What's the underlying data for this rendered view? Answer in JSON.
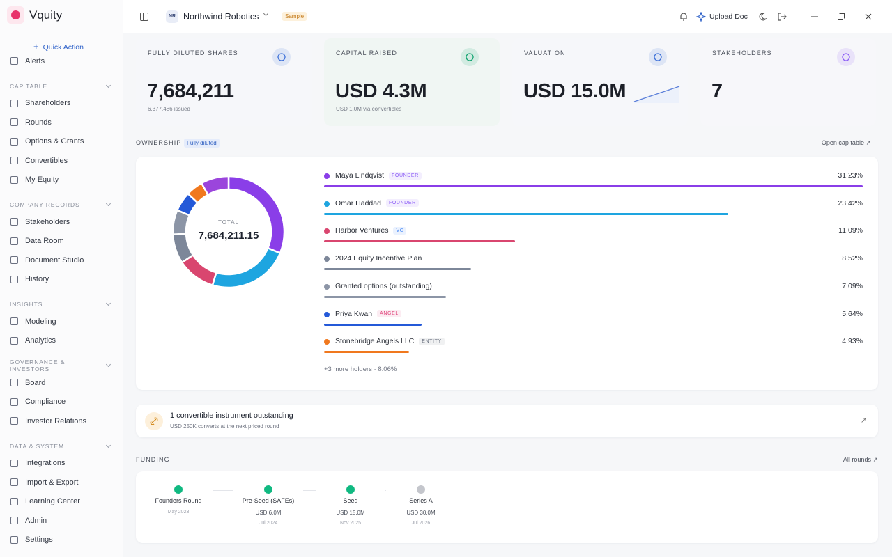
{
  "app": {
    "name": "Vquity",
    "quick_action": "Quick Action"
  },
  "sidebar": {
    "partial_item": "Alerts",
    "sections": [
      {
        "title": "CAP TABLE",
        "items": [
          "Shareholders",
          "Rounds",
          "Options & Grants",
          "Convertibles",
          "My Equity"
        ]
      },
      {
        "title": "COMPANY RECORDS",
        "items": [
          "Stakeholders",
          "Data Room",
          "Document Studio",
          "History"
        ]
      },
      {
        "title": "INSIGHTS",
        "items": [
          "Modeling",
          "Analytics"
        ]
      },
      {
        "title": "GOVERNANCE & INVESTORS",
        "items": [
          "Board",
          "Compliance",
          "Investor Relations"
        ]
      },
      {
        "title": "DATA & SYSTEM",
        "items": [
          "Integrations",
          "Import & Export",
          "Learning Center",
          "Admin",
          "Settings"
        ]
      }
    ]
  },
  "topbar": {
    "initials": "NR",
    "company": "Northwind Robotics",
    "badge": "Sample",
    "upload": "Upload Doc"
  },
  "kpis": [
    {
      "label": "FULLY DILUTED SHARES",
      "value": "7,684,211",
      "sub": "6,377,486 issued",
      "tint": "#f6f7fa",
      "icon_color": "#3b6fd8"
    },
    {
      "label": "CAPITAL RAISED",
      "value": "USD 4.3M",
      "sub": "USD 1.0M via convertibles",
      "tint": "#f0f6f3",
      "icon_color": "#10a36f"
    },
    {
      "label": "VALUATION",
      "value": "USD 15.0M",
      "tint": "#f6f7fa",
      "icon_color": "#3b6fd8"
    },
    {
      "label": "STAKEHOLDERS",
      "value": "7",
      "tint": "#f7f7fa",
      "icon_color": "#8b5cf6"
    }
  ],
  "ownership": {
    "title": "OWNERSHIP",
    "badge": "Fully diluted",
    "link": "Open cap table",
    "total_label": "TOTAL",
    "total": "7,684,211.15",
    "holders": [
      {
        "name": "Maya Lindqvist",
        "tag": "FOUNDER",
        "tag_color": "#8b5cf6",
        "value": 31.23,
        "value_label": "31.23%",
        "color": "#8a3ee8"
      },
      {
        "name": "Omar Haddad",
        "tag": "FOUNDER",
        "tag_color": "#8b5cf6",
        "value": 23.42,
        "value_label": "23.42%",
        "color": "#1ea5e0"
      },
      {
        "name": "Harbor Ventures",
        "tag": "VC",
        "tag_color": "#3b82f6",
        "value": 11.09,
        "value_label": "11.09%",
        "color": "#d9466f"
      },
      {
        "name": "2024 Equity Incentive Plan",
        "value": 8.52,
        "value_label": "8.52%",
        "color": "#7d8799"
      },
      {
        "name": "Granted options (outstanding)",
        "value": 7.09,
        "value_label": "7.09%",
        "color": "#8c95a6"
      },
      {
        "name": "Priya Kwan",
        "tag": "ANGEL",
        "tag_color": "#e0457b",
        "value": 5.64,
        "value_label": "5.64%",
        "color": "#2459d8"
      },
      {
        "name": "Stonebridge Angels LLC",
        "tag": "ENTITY",
        "tag_color": "#6b7280",
        "value": 4.93,
        "value_label": "4.93%",
        "color": "#f0781e"
      }
    ],
    "more": {
      "label": "+3 more holders ·",
      "value": 8.06,
      "value_label": "8.06%",
      "color": "#9b45dc"
    }
  },
  "convertible": {
    "title": "1 convertible instrument outstanding",
    "sub": "USD 250K converts at the next priced round"
  },
  "funding": {
    "title": "FUNDING",
    "link": "All rounds",
    "rounds": [
      {
        "name": "Founders Round",
        "date": "May 2023",
        "color": "#10b981"
      },
      {
        "name": "Pre-Seed (SAFEs)",
        "amount": "USD 6.0M",
        "date": "Jul 2024",
        "color": "#10b981"
      },
      {
        "name": "Seed",
        "amount": "USD 15.0M",
        "date": "Nov 2025",
        "color": "#10b981"
      },
      {
        "name": "Series A",
        "amount": "USD 30.0M",
        "date": "Jul 2026",
        "color": "#c4c6cc"
      }
    ]
  }
}
